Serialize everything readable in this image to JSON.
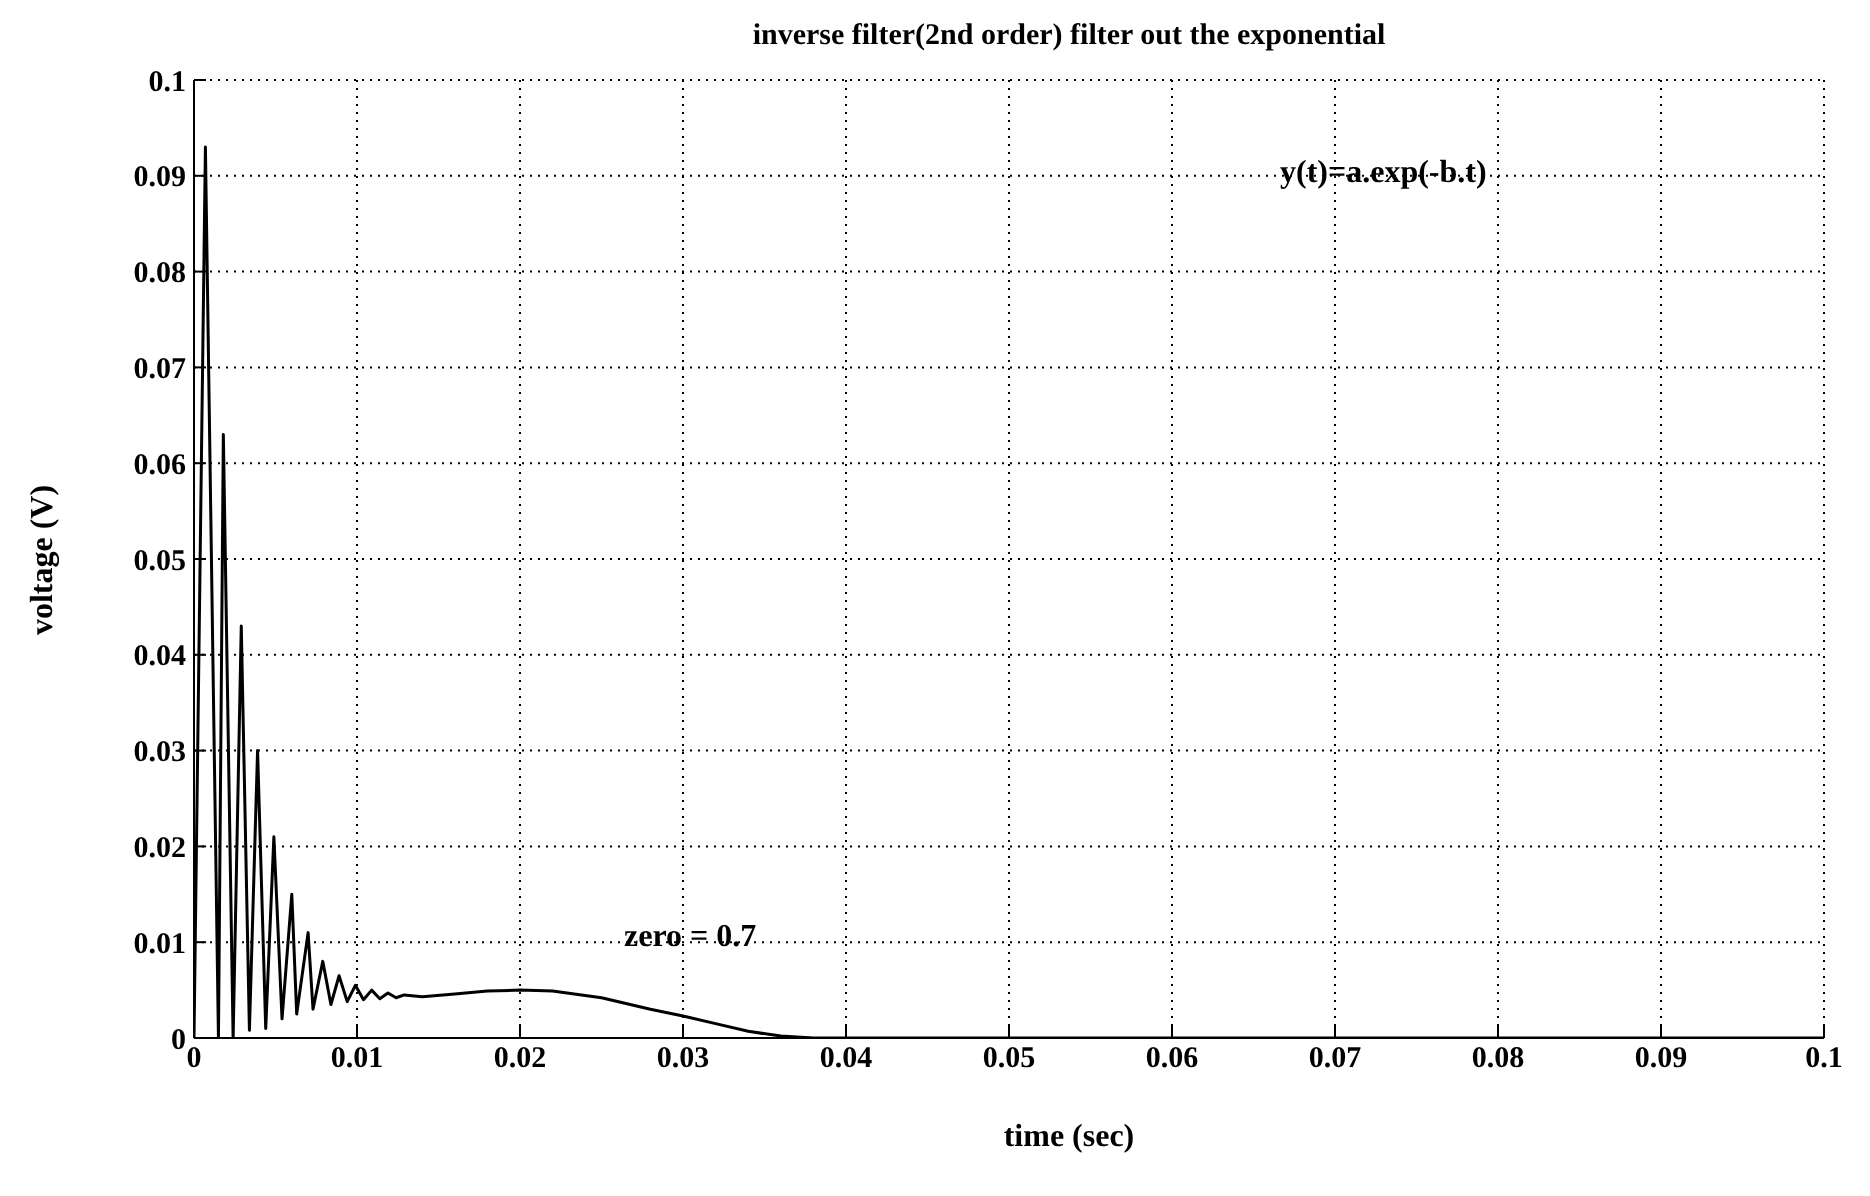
{
  "chart_data": {
    "type": "line",
    "title": "inverse filter(2nd order) filter out the exponential",
    "xlabel": "time (sec)",
    "ylabel": "voltage (V)",
    "annotations": [
      "y(t)=a.exp(-b.t)",
      "zero = 0.7"
    ],
    "x": [
      0,
      0.0007,
      0.0015,
      0.0018,
      0.0024,
      0.0029,
      0.0034,
      0.0039,
      0.0044,
      0.0049,
      0.0054,
      0.006,
      0.0063,
      0.007,
      0.0073,
      0.0079,
      0.0084,
      0.0089,
      0.0094,
      0.0099,
      0.0104,
      0.0109,
      0.0114,
      0.0119,
      0.0124,
      0.0129,
      0.014,
      0.016,
      0.018,
      0.02,
      0.022,
      0.025,
      0.028,
      0.03,
      0.032,
      0.034,
      0.036,
      0.038,
      0.05,
      0.07,
      0.1
    ],
    "series": [
      {
        "color": "#000000",
        "values": [
          0,
          0.093,
          0,
          0.063,
          0,
          0.043,
          0.0008,
          0.03,
          0.001,
          0.021,
          0.002,
          0.015,
          0.0025,
          0.011,
          0.003,
          0.008,
          0.0035,
          0.0065,
          0.0038,
          0.0055,
          0.004,
          0.005,
          0.0041,
          0.0047,
          0.0042,
          0.0045,
          0.0043,
          0.0046,
          0.0049,
          0.005,
          0.0049,
          0.0042,
          0.003,
          0.0023,
          0.0015,
          0.0007,
          0.0002,
          0,
          0,
          0,
          0
        ]
      }
    ],
    "xlim": [
      0,
      0.1
    ],
    "ylim": [
      0,
      0.1
    ],
    "xticks": [
      0,
      0.01,
      0.02,
      0.03,
      0.04,
      0.05,
      0.06,
      0.07,
      0.08,
      0.09,
      0.1
    ],
    "yticks": [
      0,
      0.01,
      0.02,
      0.03,
      0.04,
      0.05,
      0.06,
      0.07,
      0.08,
      0.09,
      0.1
    ],
    "grid": true,
    "marker": "none",
    "line_style": "solid"
  }
}
